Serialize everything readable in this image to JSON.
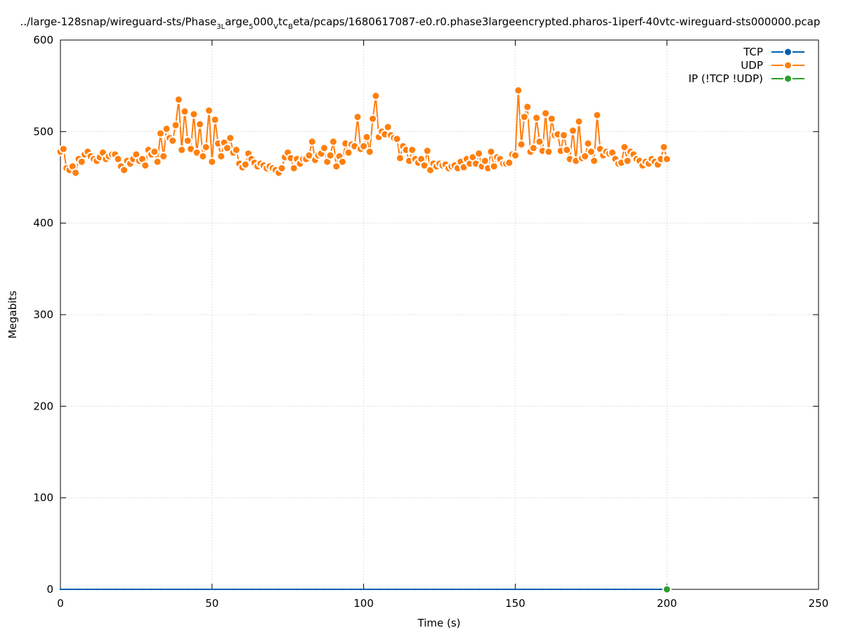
{
  "chart_data": {
    "type": "line",
    "title": {
      "prefix": "../large-128snap/wireguard-sts/Phase",
      "sub1": "3L",
      "mid1": "arge",
      "sub2": "5",
      "mid2": "000",
      "sub3": "V",
      "mid3": "tc",
      "sub4": "B",
      "suffix": "eta/pcaps/1680617087-e0.r0.phase3largeencrypted.pharos-1iperf-40vtc-wireguard-sts000000.pcap"
    },
    "xlabel": "Time (s)",
    "ylabel": "Megabits",
    "xlim": [
      0,
      250
    ],
    "ylim": [
      0,
      600
    ],
    "xticks": [
      0,
      50,
      100,
      150,
      200,
      250
    ],
    "yticks": [
      0,
      100,
      200,
      300,
      400,
      500,
      600
    ],
    "grid": true,
    "legend_position": "top-right",
    "series": [
      {
        "name": "TCP",
        "color": "#0060ad",
        "x": [
          0,
          200
        ],
        "y": [
          0,
          0
        ]
      },
      {
        "name": "UDP",
        "color": "#ff7f0e",
        "x": [
          0,
          1,
          2,
          3,
          4,
          5,
          6,
          7,
          8,
          9,
          10,
          11,
          12,
          13,
          14,
          15,
          16,
          17,
          18,
          19,
          20,
          21,
          22,
          23,
          24,
          25,
          26,
          27,
          28,
          29,
          30,
          31,
          32,
          33,
          34,
          35,
          36,
          37,
          38,
          39,
          40,
          41,
          42,
          43,
          44,
          45,
          46,
          47,
          48,
          49,
          50,
          51,
          52,
          53,
          54,
          55,
          56,
          57,
          58,
          59,
          60,
          61,
          62,
          63,
          64,
          65,
          66,
          67,
          68,
          69,
          70,
          71,
          72,
          73,
          74,
          75,
          76,
          77,
          78,
          79,
          80,
          81,
          82,
          83,
          84,
          85,
          86,
          87,
          88,
          89,
          90,
          91,
          92,
          93,
          94,
          95,
          96,
          97,
          98,
          99,
          100,
          101,
          102,
          103,
          104,
          105,
          106,
          107,
          108,
          109,
          110,
          111,
          112,
          113,
          114,
          115,
          116,
          117,
          118,
          119,
          120,
          121,
          122,
          123,
          124,
          125,
          126,
          127,
          128,
          129,
          130,
          131,
          132,
          133,
          134,
          135,
          136,
          137,
          138,
          139,
          140,
          141,
          142,
          143,
          144,
          145,
          146,
          147,
          148,
          149,
          150,
          151,
          152,
          153,
          154,
          155,
          156,
          157,
          158,
          159,
          160,
          161,
          162,
          163,
          164,
          165,
          166,
          167,
          168,
          169,
          170,
          171,
          172,
          173,
          174,
          175,
          176,
          177,
          178,
          179,
          180,
          181,
          182,
          183,
          184,
          185,
          186,
          187,
          188,
          189,
          190,
          191,
          192,
          193,
          194,
          195,
          196,
          197,
          198,
          199,
          200
        ],
        "y": [
          478,
          481,
          460,
          458,
          462,
          455,
          470,
          467,
          475,
          478,
          473,
          470,
          468,
          472,
          477,
          470,
          473,
          475,
          475,
          470,
          462,
          458,
          468,
          465,
          470,
          475,
          468,
          470,
          463,
          480,
          475,
          478,
          467,
          498,
          473,
          503,
          493,
          490,
          507,
          535,
          480,
          522,
          490,
          481,
          519,
          477,
          508,
          473,
          483,
          523,
          467,
          513,
          487,
          473,
          488,
          482,
          493,
          477,
          480,
          465,
          461,
          464,
          476,
          470,
          466,
          462,
          465,
          463,
          460,
          462,
          460,
          458,
          455,
          460,
          472,
          477,
          471,
          460,
          470,
          465,
          470,
          470,
          474,
          489,
          469,
          474,
          476,
          482,
          467,
          474,
          489,
          462,
          473,
          467,
          487,
          477,
          486,
          484,
          516,
          481,
          484,
          494,
          478,
          514,
          539,
          494,
          500,
          497,
          505,
          496,
          493,
          492,
          471,
          484,
          480,
          468,
          480,
          470,
          466,
          470,
          463,
          479,
          458,
          465,
          462,
          465,
          463,
          464,
          460,
          462,
          463,
          460,
          467,
          461,
          470,
          465,
          472,
          465,
          476,
          462,
          468,
          460,
          478,
          462,
          472,
          470,
          465,
          465,
          466,
          475,
          474,
          545,
          486,
          516,
          527,
          478,
          482,
          515,
          489,
          479,
          520,
          478,
          514,
          496,
          497,
          479,
          496,
          480,
          470,
          501,
          468,
          511,
          471,
          473,
          487,
          478,
          468,
          518,
          481,
          474,
          478,
          476,
          477,
          470,
          465,
          466,
          483,
          468,
          478,
          475,
          470,
          468,
          463,
          467,
          465,
          470,
          467,
          464,
          470,
          483,
          470
        ]
      },
      {
        "name": "IP (!TCP  !UDP)",
        "color": "#2ca02c",
        "x": [
          200
        ],
        "y": [
          0
        ]
      }
    ]
  }
}
